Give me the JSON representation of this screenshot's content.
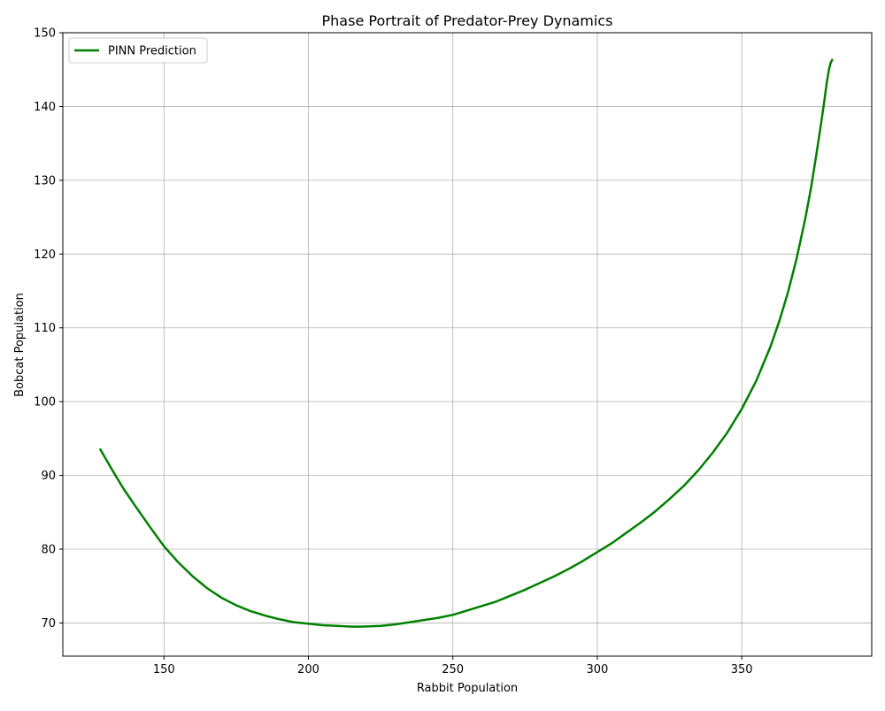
{
  "chart_data": {
    "type": "line",
    "title": "Phase Portrait of Predator-Prey Dynamics",
    "xlabel": "Rabbit Population",
    "ylabel": "Bobcat Population",
    "xlim": [
      115,
      395
    ],
    "ylim": [
      65.5,
      150
    ],
    "x_ticks": [
      150,
      200,
      250,
      300,
      350
    ],
    "y_ticks": [
      70,
      80,
      90,
      100,
      110,
      120,
      130,
      140,
      150
    ],
    "grid": true,
    "legend_position": "upper-left",
    "series": [
      {
        "name": "PINN Prediction",
        "color": "#008000",
        "x": [
          128,
          132,
          136,
          140,
          145,
          150,
          155,
          160,
          165,
          170,
          175,
          180,
          185,
          190,
          195,
          200,
          205,
          210,
          215,
          218,
          225,
          230,
          235,
          240,
          245,
          250,
          255,
          260,
          265,
          270,
          275,
          280,
          285,
          290,
          295,
          300,
          305,
          310,
          315,
          320,
          325,
          330,
          335,
          340,
          345,
          350,
          355,
          360,
          363,
          366,
          369,
          372,
          374,
          376,
          377.5,
          378.5,
          379.5,
          380.2,
          380.7,
          381,
          381.2,
          381.3
        ],
        "y": [
          93.5,
          90.8,
          88.2,
          85.9,
          83.1,
          80.4,
          78.2,
          76.3,
          74.7,
          73.4,
          72.4,
          71.6,
          71.0,
          70.5,
          70.1,
          69.9,
          69.7,
          69.6,
          69.5,
          69.5,
          69.6,
          69.8,
          70.1,
          70.4,
          70.7,
          71.1,
          71.7,
          72.3,
          72.9,
          73.7,
          74.5,
          75.4,
          76.3,
          77.3,
          78.4,
          79.6,
          80.8,
          82.2,
          83.6,
          85.1,
          86.8,
          88.6,
          90.7,
          93.1,
          95.8,
          99.0,
          102.8,
          107.5,
          110.9,
          114.8,
          119.4,
          124.8,
          129.0,
          133.9,
          137.8,
          140.5,
          143.4,
          145.0,
          145.8,
          146.1,
          146.2,
          146.3
        ]
      }
    ]
  }
}
